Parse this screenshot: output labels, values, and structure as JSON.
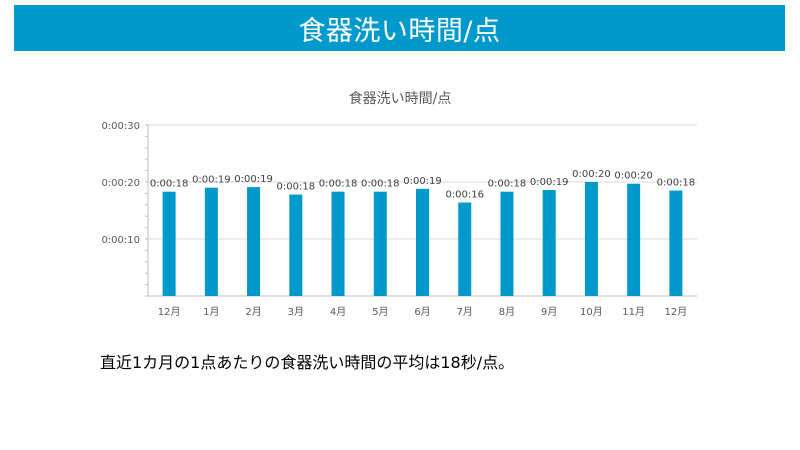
{
  "header": {
    "title": "食器洗い時間/点"
  },
  "chart_data": {
    "type": "bar",
    "title": "食器洗い時間/点",
    "categories": [
      "12月",
      "1月",
      "2月",
      "3月",
      "4月",
      "5月",
      "6月",
      "7月",
      "8月",
      "9月",
      "10月",
      "11月",
      "12月"
    ],
    "values": [
      18.3,
      19,
      19.1,
      17.8,
      18.3,
      18.3,
      18.8,
      16.4,
      18.3,
      18.6,
      20,
      19.7,
      18.5
    ],
    "data_labels": [
      "0:00:18",
      "0:00:19",
      "0:00:19",
      "0:00:18",
      "0:00:18",
      "0:00:18",
      "0:00:19",
      "0:00:16",
      "0:00:18",
      "0:00:19",
      "0:00:20",
      "0:00:20",
      "0:00:18"
    ],
    "ylim": [
      0,
      30
    ],
    "yticks": [
      10,
      20,
      30
    ],
    "ytick_labels": [
      "0:00:10",
      "0:00:20",
      "0:00:30"
    ],
    "ytick_unit": "seconds",
    "grid": true,
    "color": "#0099cc"
  },
  "summary": "直近1カ月の1点あたりの食器洗い時間の平均は18秒/点。"
}
